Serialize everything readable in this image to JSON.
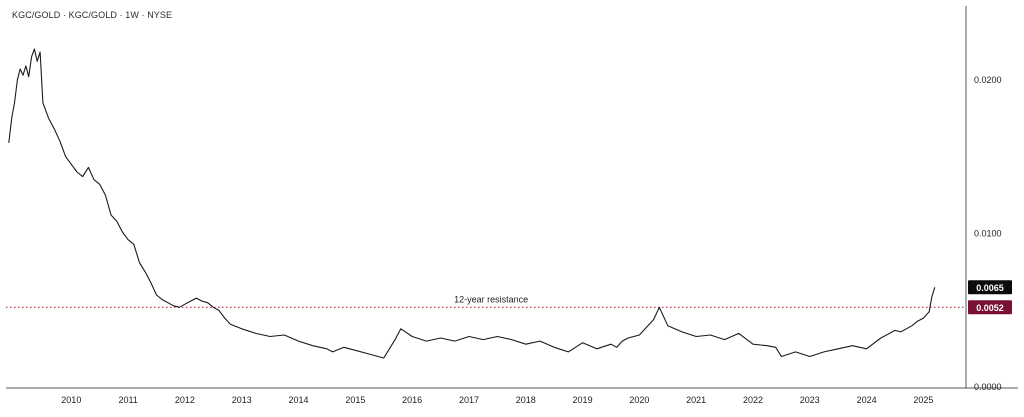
{
  "chart_data": {
    "type": "line",
    "title": "KGC/GOLD · KGC/GOLD · 1W · NYSE",
    "xlabel": "",
    "ylabel": "",
    "x_range": [
      2009.35,
      2026.25
    ],
    "ylim": [
      -5e-05,
      0.0248
    ],
    "x_ticks": [
      "2010",
      "2011",
      "2012",
      "2013",
      "2014",
      "2015",
      "2016",
      "2017",
      "2018",
      "2019",
      "2020",
      "2021",
      "2022",
      "2023",
      "2024",
      "2025"
    ],
    "y_ticks": [
      {
        "value": 0.0,
        "label": "0.0000"
      },
      {
        "value": 0.01,
        "label": "0.0100"
      },
      {
        "value": 0.02,
        "label": "0.0200"
      }
    ],
    "grid": false,
    "series": [
      {
        "line_color": "#1a1a1a",
        "x": [
          2009.4,
          2009.45,
          2009.5,
          2009.55,
          2009.6,
          2009.65,
          2009.7,
          2009.75,
          2009.8,
          2009.85,
          2009.9,
          2009.95,
          2010.0,
          2010.1,
          2010.2,
          2010.3,
          2010.4,
          2010.5,
          2010.6,
          2010.7,
          2010.8,
          2010.9,
          2011.0,
          2011.1,
          2011.2,
          2011.3,
          2011.4,
          2011.5,
          2011.6,
          2011.7,
          2011.8,
          2011.9,
          2012.0,
          2012.1,
          2012.2,
          2012.3,
          2012.4,
          2012.5,
          2012.6,
          2012.7,
          2012.8,
          2012.9,
          2013.0,
          2013.1,
          2013.2,
          2013.3,
          2013.5,
          2013.75,
          2014.0,
          2014.25,
          2014.5,
          2014.75,
          2015.0,
          2015.1,
          2015.3,
          2015.5,
          2015.7,
          2015.9,
          2016.0,
          2016.1,
          2016.2,
          2016.3,
          2016.5,
          2016.75,
          2017.0,
          2017.25,
          2017.5,
          2017.75,
          2018.0,
          2018.25,
          2018.5,
          2018.75,
          2019.0,
          2019.25,
          2019.5,
          2019.75,
          2020.0,
          2020.1,
          2020.2,
          2020.3,
          2020.5,
          2020.6,
          2020.75,
          2020.85,
          2021.0,
          2021.25,
          2021.5,
          2021.75,
          2022.0,
          2022.25,
          2022.5,
          2022.75,
          2022.9,
          2023.0,
          2023.25,
          2023.5,
          2023.75,
          2024.0,
          2024.25,
          2024.5,
          2024.75,
          2025.0,
          2025.1,
          2025.2,
          2025.3,
          2025.4,
          2025.5,
          2025.55,
          2025.6,
          2025.65,
          2025.7
        ],
        "y": [
          0.0159,
          0.0175,
          0.0185,
          0.02,
          0.0207,
          0.0203,
          0.0209,
          0.0202,
          0.0215,
          0.022,
          0.0212,
          0.0218,
          0.0185,
          0.0175,
          0.0168,
          0.016,
          0.015,
          0.0145,
          0.014,
          0.0137,
          0.0143,
          0.0135,
          0.0132,
          0.0125,
          0.0112,
          0.0108,
          0.0101,
          0.0096,
          0.0093,
          0.0081,
          0.0075,
          0.0068,
          0.006,
          0.0057,
          0.0055,
          0.0053,
          0.0052,
          0.0054,
          0.0056,
          0.0058,
          0.0056,
          0.0055,
          0.0052,
          0.005,
          0.0045,
          0.0041,
          0.0038,
          0.0035,
          0.0033,
          0.0034,
          0.003,
          0.0027,
          0.0025,
          0.0023,
          0.0026,
          0.0024,
          0.0022,
          0.002,
          0.0019,
          0.0025,
          0.0031,
          0.0038,
          0.0033,
          0.003,
          0.0032,
          0.003,
          0.0033,
          0.0031,
          0.0033,
          0.0031,
          0.0028,
          0.003,
          0.0026,
          0.0023,
          0.0029,
          0.0025,
          0.0028,
          0.0026,
          0.003,
          0.0032,
          0.0034,
          0.0038,
          0.0044,
          0.0052,
          0.004,
          0.0036,
          0.0033,
          0.0034,
          0.0031,
          0.0035,
          0.0028,
          0.0027,
          0.0026,
          0.002,
          0.0023,
          0.002,
          0.0023,
          0.0025,
          0.0027,
          0.0025,
          0.0032,
          0.0037,
          0.0036,
          0.0038,
          0.004,
          0.0043,
          0.0045,
          0.0047,
          0.0049,
          0.0059,
          0.0065
        ]
      }
    ],
    "reference_line": {
      "value": 0.0052,
      "label": "12-year resistance",
      "color": "#c0252e",
      "style": "dotted"
    },
    "price_labels": [
      {
        "value": 0.0065,
        "label": "0.0065",
        "bg": "#0b0b0b",
        "fg": "#ffffff"
      },
      {
        "value": 0.0052,
        "label": "0.0052",
        "bg": "#7a1035",
        "fg": "#ffffff"
      }
    ]
  }
}
